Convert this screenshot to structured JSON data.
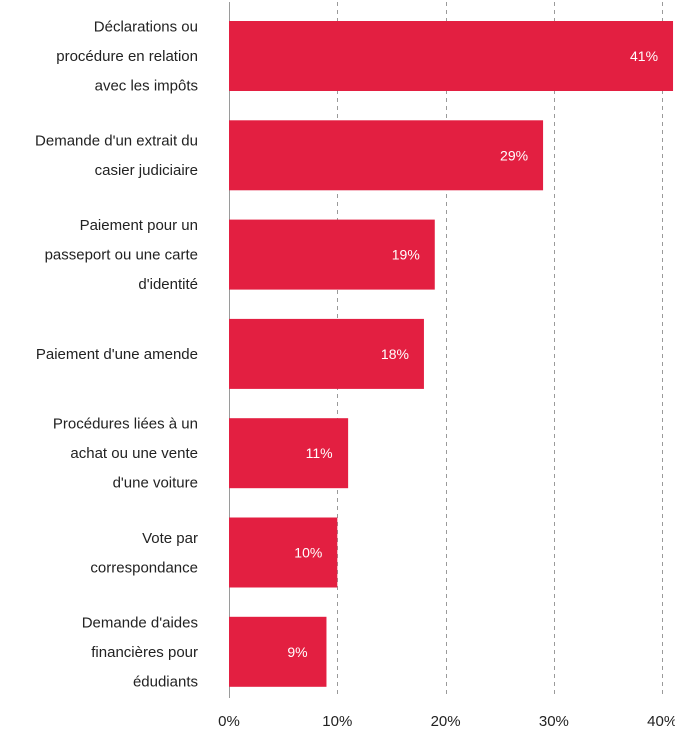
{
  "chart_data": {
    "type": "bar",
    "orientation": "horizontal",
    "title": "",
    "xlabel": "",
    "ylabel": "",
    "categories": [
      [
        "Déclarations ou",
        "procédure en relation",
        "avec les impôts"
      ],
      [
        "Demande d'un extrait du",
        "casier judiciaire"
      ],
      [
        "Paiement pour un",
        "passeport ou une carte",
        "d'identité"
      ],
      [
        "Paiement d'une amende"
      ],
      [
        "Procédures liées à un",
        "achat ou une vente",
        "d'une voiture"
      ],
      [
        "Vote par",
        "correspondance"
      ],
      [
        "Demande d'aides",
        "financières pour",
        "édudiants"
      ]
    ],
    "values": [
      41,
      29,
      19,
      18,
      11,
      10,
      9
    ],
    "value_labels": [
      "41%",
      "29%",
      "19%",
      "18%",
      "11%",
      "10%",
      "9%"
    ],
    "xlim": [
      0,
      40
    ],
    "ticks": [
      0,
      10,
      20,
      30,
      40
    ],
    "tick_labels": [
      "0%",
      "10%",
      "20%",
      "30%",
      "40%"
    ],
    "grid": "vertical-dashed",
    "bar_color": "#e31f41",
    "value_label_color": "#ffffff",
    "grid_color": "#9a9a9a",
    "text_color": "#222222"
  }
}
